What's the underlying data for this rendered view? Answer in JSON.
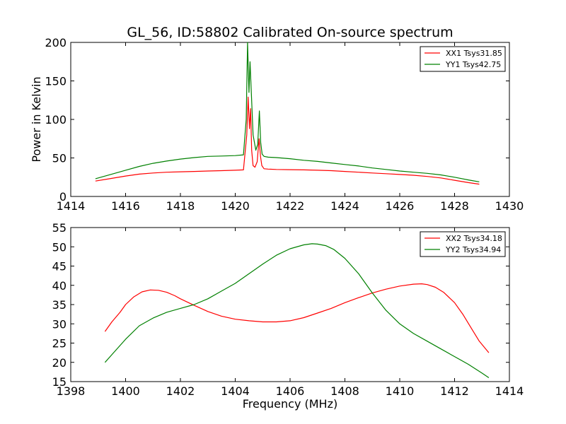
{
  "chart_data": [
    {
      "type": "line",
      "title": "GL_56, ID:58802 Calibrated On-source spectrum",
      "xlabel": "",
      "ylabel": "Power in Kelvin",
      "xlim": [
        1414,
        1430
      ],
      "ylim": [
        0,
        200
      ],
      "xticks": [
        "1414",
        "1416",
        "1418",
        "1420",
        "1422",
        "1424",
        "1426",
        "1428",
        "1430"
      ],
      "yticks": [
        "0",
        "50",
        "100",
        "150",
        "200"
      ],
      "grid": false,
      "legend_position": "top-right",
      "series": [
        {
          "name": "XX1 Tsys31.85",
          "color": "#ff0000",
          "x": [
            1414.9,
            1415.5,
            1416.0,
            1416.5,
            1417.0,
            1417.5,
            1418.0,
            1418.5,
            1419.0,
            1419.5,
            1420.0,
            1420.3,
            1420.42,
            1420.47,
            1420.52,
            1420.56,
            1420.6,
            1420.65,
            1420.72,
            1420.8,
            1420.87,
            1420.92,
            1420.97,
            1421.05,
            1421.2,
            1421.5,
            1422.0,
            1422.5,
            1423.0,
            1423.5,
            1424.0,
            1424.5,
            1425.0,
            1425.5,
            1426.0,
            1426.5,
            1427.0,
            1427.5,
            1428.0,
            1428.5,
            1428.9
          ],
          "y": [
            20,
            23.5,
            26.5,
            29,
            30.5,
            31.5,
            32,
            32.5,
            33,
            33.5,
            34,
            34.5,
            80,
            129,
            88,
            114,
            60,
            40,
            38,
            45,
            75,
            52,
            40,
            36,
            35.5,
            35,
            34.8,
            34.5,
            34,
            33.5,
            32.5,
            31.5,
            30.5,
            29.5,
            28.5,
            27.5,
            26,
            24,
            21,
            18,
            16
          ]
        },
        {
          "name": "YY1 Tsys42.75",
          "color": "#008000",
          "x": [
            1414.9,
            1415.5,
            1416.0,
            1416.5,
            1417.0,
            1417.5,
            1418.0,
            1418.5,
            1419.0,
            1419.5,
            1420.0,
            1420.3,
            1420.4,
            1420.45,
            1420.5,
            1420.54,
            1420.58,
            1420.65,
            1420.75,
            1420.82,
            1420.88,
            1420.93,
            1420.98,
            1421.05,
            1421.2,
            1421.5,
            1422.0,
            1422.5,
            1423.0,
            1423.5,
            1424.0,
            1424.5,
            1425.0,
            1425.5,
            1426.0,
            1426.5,
            1427.0,
            1427.5,
            1428.0,
            1428.5,
            1428.9
          ],
          "y": [
            23,
            29,
            34,
            39,
            43,
            46,
            48.5,
            50.5,
            52,
            52.5,
            53,
            54,
            100,
            200,
            135,
            175,
            140,
            80,
            60,
            68,
            111,
            70,
            55,
            52,
            51,
            50.5,
            49,
            47,
            45.5,
            43.5,
            41.5,
            39.5,
            37,
            35,
            33,
            31.5,
            30,
            28,
            25,
            21.5,
            19
          ]
        }
      ]
    },
    {
      "type": "line",
      "title": "",
      "xlabel": "Frequency (MHz)",
      "ylabel": "",
      "xlim": [
        1398,
        1414
      ],
      "ylim": [
        15,
        55
      ],
      "xticks": [
        "1398",
        "1400",
        "1402",
        "1404",
        "1406",
        "1408",
        "1410",
        "1412",
        "1414"
      ],
      "yticks": [
        "15",
        "20",
        "25",
        "30",
        "35",
        "40",
        "45",
        "50",
        "55"
      ],
      "grid": false,
      "legend_position": "top-right",
      "series": [
        {
          "name": "XX2 Tsys34.18",
          "color": "#ff0000",
          "x": [
            1399.25,
            1399.5,
            1399.8,
            1400.0,
            1400.3,
            1400.6,
            1400.9,
            1401.2,
            1401.5,
            1401.8,
            1402.0,
            1402.5,
            1403.0,
            1403.5,
            1404.0,
            1404.5,
            1405.0,
            1405.5,
            1406.0,
            1406.5,
            1407.0,
            1407.5,
            1408.0,
            1408.5,
            1409.0,
            1409.5,
            1410.0,
            1410.5,
            1410.8,
            1411.0,
            1411.3,
            1411.6,
            1412.0,
            1412.3,
            1412.6,
            1412.9,
            1413.25
          ],
          "y": [
            28,
            30.5,
            33,
            35,
            37,
            38.3,
            38.8,
            38.7,
            38.2,
            37.3,
            36.5,
            34.8,
            33.2,
            32.0,
            31.2,
            30.8,
            30.5,
            30.5,
            30.8,
            31.6,
            32.8,
            34.0,
            35.5,
            36.8,
            38.0,
            39.0,
            39.8,
            40.3,
            40.4,
            40.2,
            39.5,
            38.2,
            35.5,
            32.5,
            29.0,
            25.5,
            22.5
          ]
        },
        {
          "name": "YY2 Tsys34.94",
          "color": "#008000",
          "x": [
            1399.25,
            1399.5,
            1400.0,
            1400.5,
            1401.0,
            1401.5,
            1402.0,
            1402.5,
            1403.0,
            1403.5,
            1404.0,
            1404.5,
            1405.0,
            1405.5,
            1406.0,
            1406.5,
            1406.8,
            1407.0,
            1407.3,
            1407.6,
            1408.0,
            1408.5,
            1409.0,
            1409.5,
            1410.0,
            1410.5,
            1411.0,
            1411.5,
            1412.0,
            1412.5,
            1413.0,
            1413.25
          ],
          "y": [
            20,
            22,
            26,
            29.5,
            31.5,
            33,
            34,
            35,
            36.5,
            38.5,
            40.5,
            43,
            45.5,
            47.8,
            49.5,
            50.5,
            50.8,
            50.7,
            50.3,
            49.3,
            47.0,
            43.0,
            38.0,
            33.5,
            30.0,
            27.5,
            25.5,
            23.5,
            21.5,
            19.5,
            17.2,
            16
          ]
        }
      ]
    }
  ]
}
